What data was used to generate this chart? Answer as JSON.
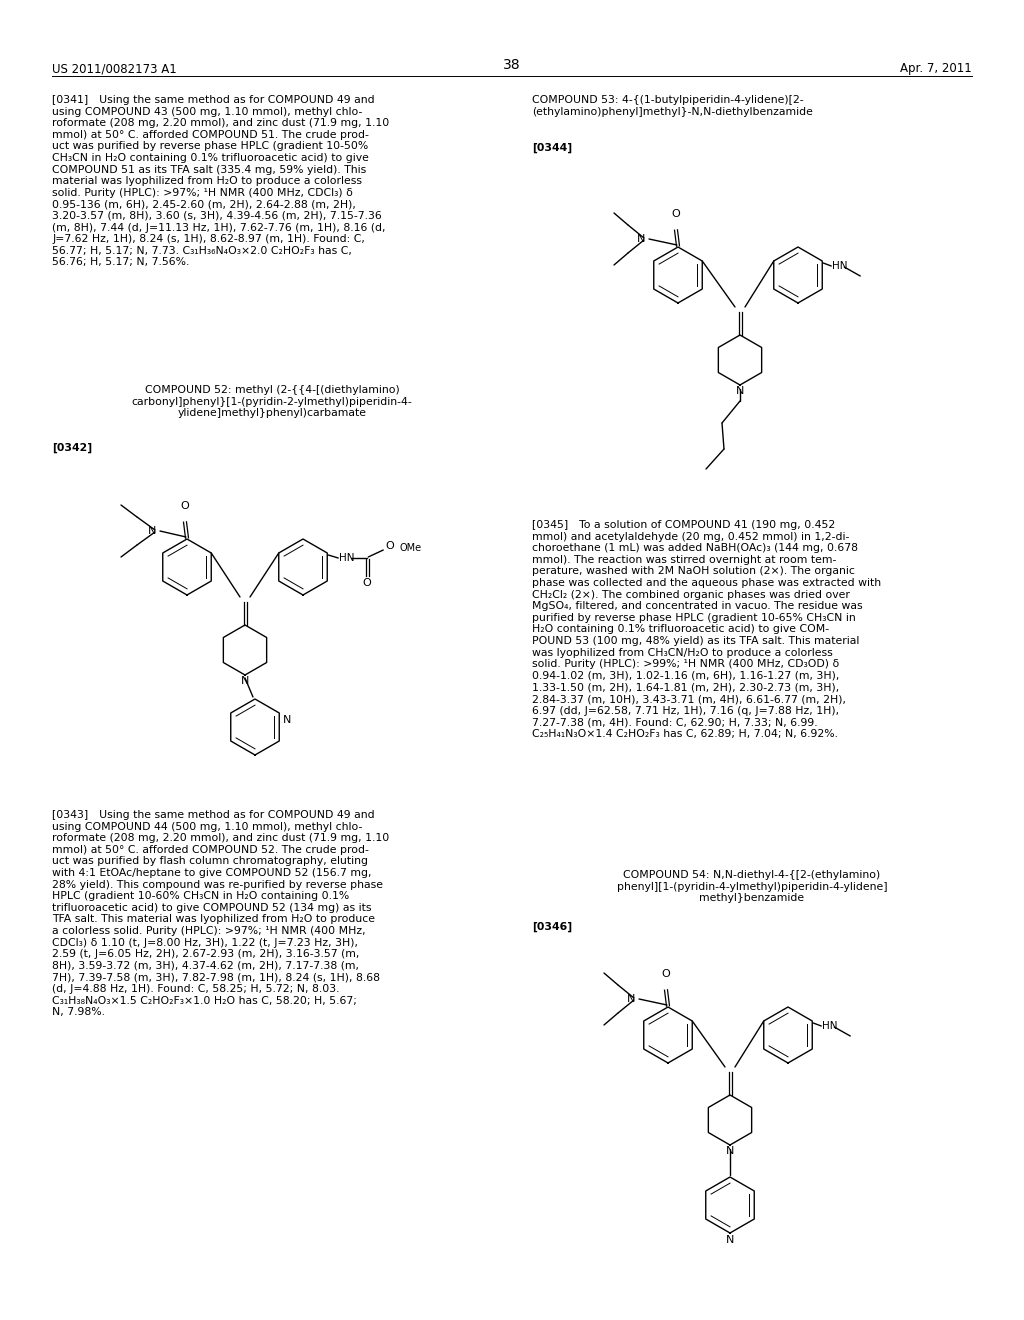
{
  "background_color": "#ffffff",
  "page_header_left": "US 2011/0082173 A1",
  "page_header_right": "Apr. 7, 2011",
  "page_number": "38",
  "body_font_size": 7.8,
  "small_font_size": 7.2,
  "para341": "[0341] Using the same method as for COMPOUND 49 and\nusing COMPOUND 43 (500 mg, 1.10 mmol), methyl chlo-\nroformate (208 mg, 2.20 mmol), and zinc dust (71.9 mg, 1.10\nmmol) at 50° C. afforded COMPOUND 51. The crude prod-\nuct was purified by reverse phase HPLC (gradient 10-50%\nCH₃CN in H₂O containing 0.1% trifluoroacetic acid) to give\nCOMPOUND 51 as its TFA salt (335.4 mg, 59% yield). This\nmaterial was lyophilized from H₂O to produce a colorless\nsolid. Purity (HPLC): >97%; ¹H NMR (400 MHz, CDCl₃) δ\n0.95-136 (m, 6H), 2.45-2.60 (m, 2H), 2.64-2.88 (m, 2H),\n3.20-3.57 (m, 8H), 3.60 (s, 3H), 4.39-4.56 (m, 2H), 7.15-7.36\n(m, 8H), 7.44 (d, J=11.13 Hz, 1H), 7.62-7.76 (m, 1H), 8.16 (d,\nJ=7.62 Hz, 1H), 8.24 (s, 1H), 8.62-8.97 (m, 1H). Found: C,\n56.77; H, 5.17; N, 7.73. C₃₁H₃₆N₄O₃×2.0 C₂HO₂F₃ has C,\n56.76; H, 5.17; N, 7.56%.",
  "comp52_title": "COMPOUND 52: methyl (2-{{4-[(diethylamino)\ncarbonyl]phenyl}[1-(pyridin-2-ylmethyl)piperidin-4-\nylidene]methyl}phenyl)carbamate",
  "para343": "[0343] Using the same method as for COMPOUND 49 and\nusing COMPOUND 44 (500 mg, 1.10 mmol), methyl chlo-\nroformate (208 mg, 2.20 mmol), and zinc dust (71.9 mg, 1.10\nmmol) at 50° C. afforded COMPOUND 52. The crude prod-\nuct was purified by flash column chromatography, eluting\nwith 4:1 EtOAc/heptane to give COMPOUND 52 (156.7 mg,\n28% yield). This compound was re-purified by reverse phase\nHPLC (gradient 10-60% CH₃CN in H₂O containing 0.1%\ntrifluoroacetic acid) to give COMPOUND 52 (134 mg) as its\nTFA salt. This material was lyophilized from H₂O to produce\na colorless solid. Purity (HPLC): >97%; ¹H NMR (400 MHz,\nCDCl₃) δ 1.10 (t, J=8.00 Hz, 3H), 1.22 (t, J=7.23 Hz, 3H),\n2.59 (t, J=6.05 Hz, 2H), 2.67-2.93 (m, 2H), 3.16-3.57 (m,\n8H), 3.59-3.72 (m, 3H), 4.37-4.62 (m, 2H), 7.17-7.38 (m,\n7H), 7.39-7.58 (m, 3H), 7.82-7.98 (m, 1H), 8.24 (s, 1H), 8.68\n(d, J=4.88 Hz, 1H). Found: C, 58.25; H, 5.72; N, 8.03.\nC₃₁H₃₈N₄O₃×1.5 C₂HO₂F₃×1.0 H₂O has C, 58.20; H, 5.67;\nN, 7.98%.",
  "comp53_title": "COMPOUND 53: 4-{(1-butylpiperidin-4-ylidene)[2-\n(ethylamino)phenyl]methyl}-N,N-diethylbenzamide",
  "para345": "[0345] To a solution of COMPOUND 41 (190 mg, 0.452\nmmol) and acetylaldehyde (20 mg, 0.452 mmol) in 1,2-di-\nchoroethane (1 mL) was added NaBH(OAc)₃ (144 mg, 0.678\nmmol). The reaction was stirred overnight at room tem-\nperature, washed with 2M NaOH solution (2×). The organic\nphase was collected and the aqueous phase was extracted with\nCH₂Cl₂ (2×). The combined organic phases was dried over\nMgSO₄, filtered, and concentrated in vacuo. The residue was\npurified by reverse phase HPLC (gradient 10-65% CH₃CN in\nH₂O containing 0.1% trifluoroacetic acid) to give COM-\nPOUND 53 (100 mg, 48% yield) as its TFA salt. This material\nwas lyophilized from CH₃CN/H₂O to produce a colorless\nsolid. Purity (HPLC): >99%; ¹H NMR (400 MHz, CD₃OD) δ\n0.94-1.02 (m, 3H), 1.02-1.16 (m, 6H), 1.16-1.27 (m, 3H),\n1.33-1.50 (m, 2H), 1.64-1.81 (m, 2H), 2.30-2.73 (m, 3H),\n2.84-3.37 (m, 10H), 3.43-3.71 (m, 4H), 6.61-6.77 (m, 2H),\n6.97 (dd, J=62.58, 7.71 Hz, 1H), 7.16 (q, J=7.88 Hz, 1H),\n7.27-7.38 (m, 4H). Found: C, 62.90; H, 7.33; N, 6.99.\nC₂₅H₄₁N₃O×1.4 C₂HO₂F₃ has C, 62.89; H, 7.04; N, 6.92%.",
  "comp54_title": "COMPOUND 54: N,N-diethyl-4-{[2-(ethylamino)\nphenyl][1-(pyridin-4-ylmethyl)piperidin-4-ylidene]\nmethyl}benzamide"
}
